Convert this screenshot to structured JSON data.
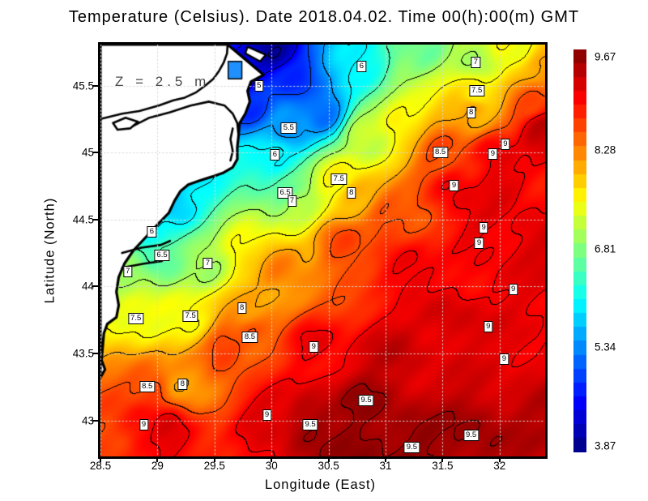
{
  "chart_data": {
    "type": "heatmap",
    "title": "Temperature (Celsius). Date 2018.04.02. Time 00(h):00(m) GMT",
    "xlabel": "Longitude (East)",
    "ylabel": "Latitude (North)",
    "annotation": "Z = 2.5 m",
    "xlim": [
      28.5,
      32.399
    ],
    "ylim": [
      42.731,
      45.806
    ],
    "grid": true,
    "x_ticks": [
      28.5,
      29,
      29.5,
      30,
      30.5,
      31,
      31.5,
      32
    ],
    "x_tick_labels": [
      "28.5",
      "29",
      "29.5",
      "30",
      "30.5",
      "31",
      "31.5",
      "32"
    ],
    "y_ticks": [
      45.5,
      45,
      44.5,
      44,
      43.5,
      43
    ],
    "y_tick_labels": [
      "45.5",
      "45",
      "44.5",
      "44",
      "43.5",
      "43"
    ],
    "contour_interval": 0.5,
    "colorbar": {
      "colormap": "jet",
      "min": 3.87,
      "max": 9.67,
      "steps": 29,
      "tick_values": [
        9.67,
        8.28,
        6.81,
        5.34,
        3.87
      ],
      "tick_labels": [
        "9.67",
        "8.28",
        "6.81",
        "5.34",
        "3.87"
      ]
    },
    "contour_labels": [
      {
        "lon": 29.89,
        "lat": 45.5,
        "v": "5"
      },
      {
        "lon": 30.15,
        "lat": 45.18,
        "v": "5.5"
      },
      {
        "lon": 30.79,
        "lat": 45.64,
        "v": "6"
      },
      {
        "lon": 30.03,
        "lat": 44.98,
        "v": "6"
      },
      {
        "lon": 28.95,
        "lat": 44.41,
        "v": "6"
      },
      {
        "lon": 30.12,
        "lat": 44.7,
        "v": "6.5"
      },
      {
        "lon": 29.04,
        "lat": 44.23,
        "v": "6.5"
      },
      {
        "lon": 31.79,
        "lat": 45.67,
        "v": "7"
      },
      {
        "lon": 30.18,
        "lat": 44.64,
        "v": "7"
      },
      {
        "lon": 28.74,
        "lat": 44.11,
        "v": "7"
      },
      {
        "lon": 29.44,
        "lat": 44.17,
        "v": "7"
      },
      {
        "lon": 31.8,
        "lat": 45.46,
        "v": "7.5"
      },
      {
        "lon": 30.59,
        "lat": 44.8,
        "v": "7.5"
      },
      {
        "lon": 28.81,
        "lat": 43.76,
        "v": "7.5"
      },
      {
        "lon": 29.29,
        "lat": 43.78,
        "v": "7.5"
      },
      {
        "lon": 31.75,
        "lat": 45.3,
        "v": "8"
      },
      {
        "lon": 30.7,
        "lat": 44.7,
        "v": "8"
      },
      {
        "lon": 29.74,
        "lat": 43.84,
        "v": "8"
      },
      {
        "lon": 29.22,
        "lat": 43.27,
        "v": "8"
      },
      {
        "lon": 31.48,
        "lat": 45.0,
        "v": "8.5"
      },
      {
        "lon": 29.81,
        "lat": 43.62,
        "v": "8.5"
      },
      {
        "lon": 28.91,
        "lat": 43.25,
        "v": "8.5"
      },
      {
        "lon": 31.94,
        "lat": 44.99,
        "v": "9"
      },
      {
        "lon": 32.05,
        "lat": 45.06,
        "v": "9"
      },
      {
        "lon": 31.6,
        "lat": 44.75,
        "v": "9"
      },
      {
        "lon": 30.37,
        "lat": 43.55,
        "v": "9"
      },
      {
        "lon": 28.88,
        "lat": 42.97,
        "v": "9"
      },
      {
        "lon": 29.96,
        "lat": 43.04,
        "v": "9"
      },
      {
        "lon": 32.04,
        "lat": 43.46,
        "v": "9"
      },
      {
        "lon": 32.12,
        "lat": 43.98,
        "v": "9"
      },
      {
        "lon": 31.9,
        "lat": 43.7,
        "v": "9"
      },
      {
        "lon": 31.86,
        "lat": 44.44,
        "v": "9"
      },
      {
        "lon": 31.82,
        "lat": 44.32,
        "v": "9"
      },
      {
        "lon": 30.34,
        "lat": 42.97,
        "v": "9.5"
      },
      {
        "lon": 30.83,
        "lat": 43.15,
        "v": "9.5"
      },
      {
        "lon": 31.23,
        "lat": 42.8,
        "v": "9.5"
      },
      {
        "lon": 31.75,
        "lat": 42.89,
        "v": "9.5"
      }
    ],
    "field_samples": [
      [
        30.03,
        45.78,
        4.0
      ],
      [
        29.75,
        45.59,
        4.4
      ],
      [
        30.18,
        45.53,
        4.8
      ],
      [
        30.46,
        45.29,
        5.2
      ],
      [
        30.15,
        45.18,
        5.5
      ],
      [
        30.03,
        44.98,
        6.0
      ],
      [
        30.79,
        45.64,
        6.0
      ],
      [
        31.31,
        45.78,
        6.7
      ],
      [
        31.79,
        45.67,
        7.0
      ],
      [
        32.16,
        45.79,
        7.4
      ],
      [
        32.38,
        45.62,
        8.1
      ],
      [
        31.8,
        45.46,
        7.5
      ],
      [
        31.75,
        45.3,
        8.0
      ],
      [
        32.27,
        45.38,
        8.5
      ],
      [
        31.48,
        45.0,
        8.5
      ],
      [
        31.94,
        44.99,
        9.0
      ],
      [
        32.36,
        45.17,
        9.3
      ],
      [
        31.6,
        44.75,
        9.05
      ],
      [
        30.12,
        44.7,
        6.6
      ],
      [
        30.21,
        44.63,
        7.0
      ],
      [
        30.59,
        44.8,
        7.5
      ],
      [
        30.72,
        44.69,
        8.0
      ],
      [
        31.03,
        44.53,
        8.5
      ],
      [
        28.95,
        44.41,
        6.0
      ],
      [
        29.04,
        44.23,
        6.5
      ],
      [
        28.74,
        44.11,
        7.0
      ],
      [
        29.44,
        44.17,
        7.0
      ],
      [
        29.18,
        44.6,
        5.8
      ],
      [
        29.37,
        44.8,
        5.9
      ],
      [
        29.82,
        45.35,
        4.8
      ],
      [
        29.29,
        43.78,
        7.5
      ],
      [
        28.81,
        43.76,
        7.4
      ],
      [
        29.74,
        43.84,
        8.0
      ],
      [
        29.81,
        43.62,
        8.5
      ],
      [
        30.37,
        43.55,
        9.0
      ],
      [
        28.91,
        43.25,
        8.6
      ],
      [
        29.22,
        43.27,
        8.0
      ],
      [
        28.88,
        42.97,
        8.9
      ],
      [
        28.61,
        42.75,
        8.6
      ],
      [
        29.96,
        43.04,
        9.1
      ],
      [
        30.34,
        42.97,
        9.5
      ],
      [
        30.83,
        43.15,
        9.5
      ],
      [
        31.23,
        42.8,
        9.55
      ],
      [
        31.75,
        42.89,
        9.5
      ],
      [
        30.82,
        42.78,
        9.6
      ],
      [
        32.04,
        43.46,
        9.1
      ],
      [
        32.12,
        43.98,
        9.05
      ],
      [
        32.31,
        44.32,
        9.15
      ],
      [
        31.86,
        44.44,
        9.05
      ],
      [
        31.17,
        44.14,
        9.1
      ],
      [
        31.6,
        43.72,
        9.2
      ],
      [
        31.03,
        43.54,
        9.25
      ],
      [
        32.31,
        42.99,
        9.35
      ],
      [
        31.17,
        45.23,
        7.6
      ],
      [
        30.81,
        45.11,
        7.2
      ],
      [
        30.6,
        44.32,
        8.6
      ],
      [
        30.1,
        44.14,
        8.2
      ],
      [
        29.75,
        44.32,
        7.6
      ],
      [
        29.61,
        43.54,
        8.6
      ],
      [
        32.02,
        44.75,
        9.1
      ],
      [
        29.1,
        42.9,
        9.15
      ]
    ],
    "land": {
      "color": "#ffffff",
      "coast_color": "#000000",
      "outer": [
        [
          28.5,
          45.806
        ],
        [
          29.615,
          45.806
        ],
        [
          29.93,
          45.58
        ],
        [
          29.82,
          45.53
        ],
        [
          29.79,
          45.46
        ],
        [
          29.81,
          45.38
        ],
        [
          29.77,
          45.29
        ],
        [
          29.72,
          45.22
        ],
        [
          29.71,
          45.12
        ],
        [
          29.7,
          45.04
        ],
        [
          29.7,
          44.95
        ],
        [
          29.66,
          44.89
        ],
        [
          29.58,
          44.85
        ],
        [
          29.48,
          44.82
        ],
        [
          29.37,
          44.79
        ],
        [
          29.27,
          44.76
        ],
        [
          29.2,
          44.71
        ],
        [
          29.15,
          44.64
        ],
        [
          29.1,
          44.55
        ],
        [
          29.01,
          44.47
        ],
        [
          28.9,
          44.37
        ],
        [
          28.79,
          44.27
        ],
        [
          28.71,
          44.17
        ],
        [
          28.66,
          44.07
        ],
        [
          28.64,
          43.96
        ],
        [
          28.66,
          43.86
        ],
        [
          28.64,
          43.77
        ],
        [
          28.56,
          43.72
        ],
        [
          28.53,
          43.65
        ],
        [
          28.52,
          43.55
        ],
        [
          28.51,
          43.45
        ],
        [
          28.54,
          43.38
        ],
        [
          28.5,
          43.32
        ]
      ],
      "inner_lines": [
        [
          [
            28.5,
            45.25
          ],
          [
            28.69,
            45.29
          ],
          [
            28.84,
            45.31
          ],
          [
            29.01,
            45.35
          ],
          [
            29.14,
            45.39
          ],
          [
            29.24,
            45.41
          ],
          [
            29.34,
            45.45
          ],
          [
            29.42,
            45.5
          ],
          [
            29.49,
            45.55
          ],
          [
            29.54,
            45.61
          ],
          [
            29.58,
            45.67
          ],
          [
            29.61,
            45.74
          ],
          [
            29.615,
            45.806
          ]
        ],
        [
          [
            28.79,
            45.2
          ],
          [
            28.93,
            45.26
          ],
          [
            29.11,
            45.3
          ],
          [
            29.29,
            45.35
          ],
          [
            29.45,
            45.38
          ],
          [
            29.59,
            45.35
          ],
          [
            29.66,
            45.29
          ],
          [
            29.7,
            45.22
          ],
          [
            29.71,
            45.13
          ]
        ],
        [
          [
            28.61,
            45.22
          ],
          [
            28.72,
            45.26
          ],
          [
            28.83,
            45.23
          ],
          [
            28.76,
            45.18
          ],
          [
            28.65,
            45.17
          ],
          [
            28.61,
            45.22
          ]
        ],
        [
          [
            29.66,
            45.18
          ],
          [
            29.64,
            45.1
          ],
          [
            29.66,
            45.01
          ],
          [
            29.64,
            44.94
          ]
        ],
        [
          [
            28.69,
            44.25
          ],
          [
            28.86,
            44.29
          ],
          [
            29.03,
            44.31
          ],
          [
            29.11,
            44.34
          ]
        ],
        [
          [
            28.69,
            44.14
          ],
          [
            28.88,
            44.17
          ],
          [
            29.04,
            44.19
          ]
        ]
      ],
      "liman_rect": [
        29.62,
        45.68,
        29.74,
        45.55
      ],
      "liman_color": "#2090ff",
      "islands": [
        [
          [
            29.79,
            45.79
          ],
          [
            29.95,
            45.73
          ],
          [
            29.9,
            45.68
          ],
          [
            29.77,
            45.74
          ]
        ]
      ]
    },
    "gridline_color": "#d9d9d9"
  }
}
